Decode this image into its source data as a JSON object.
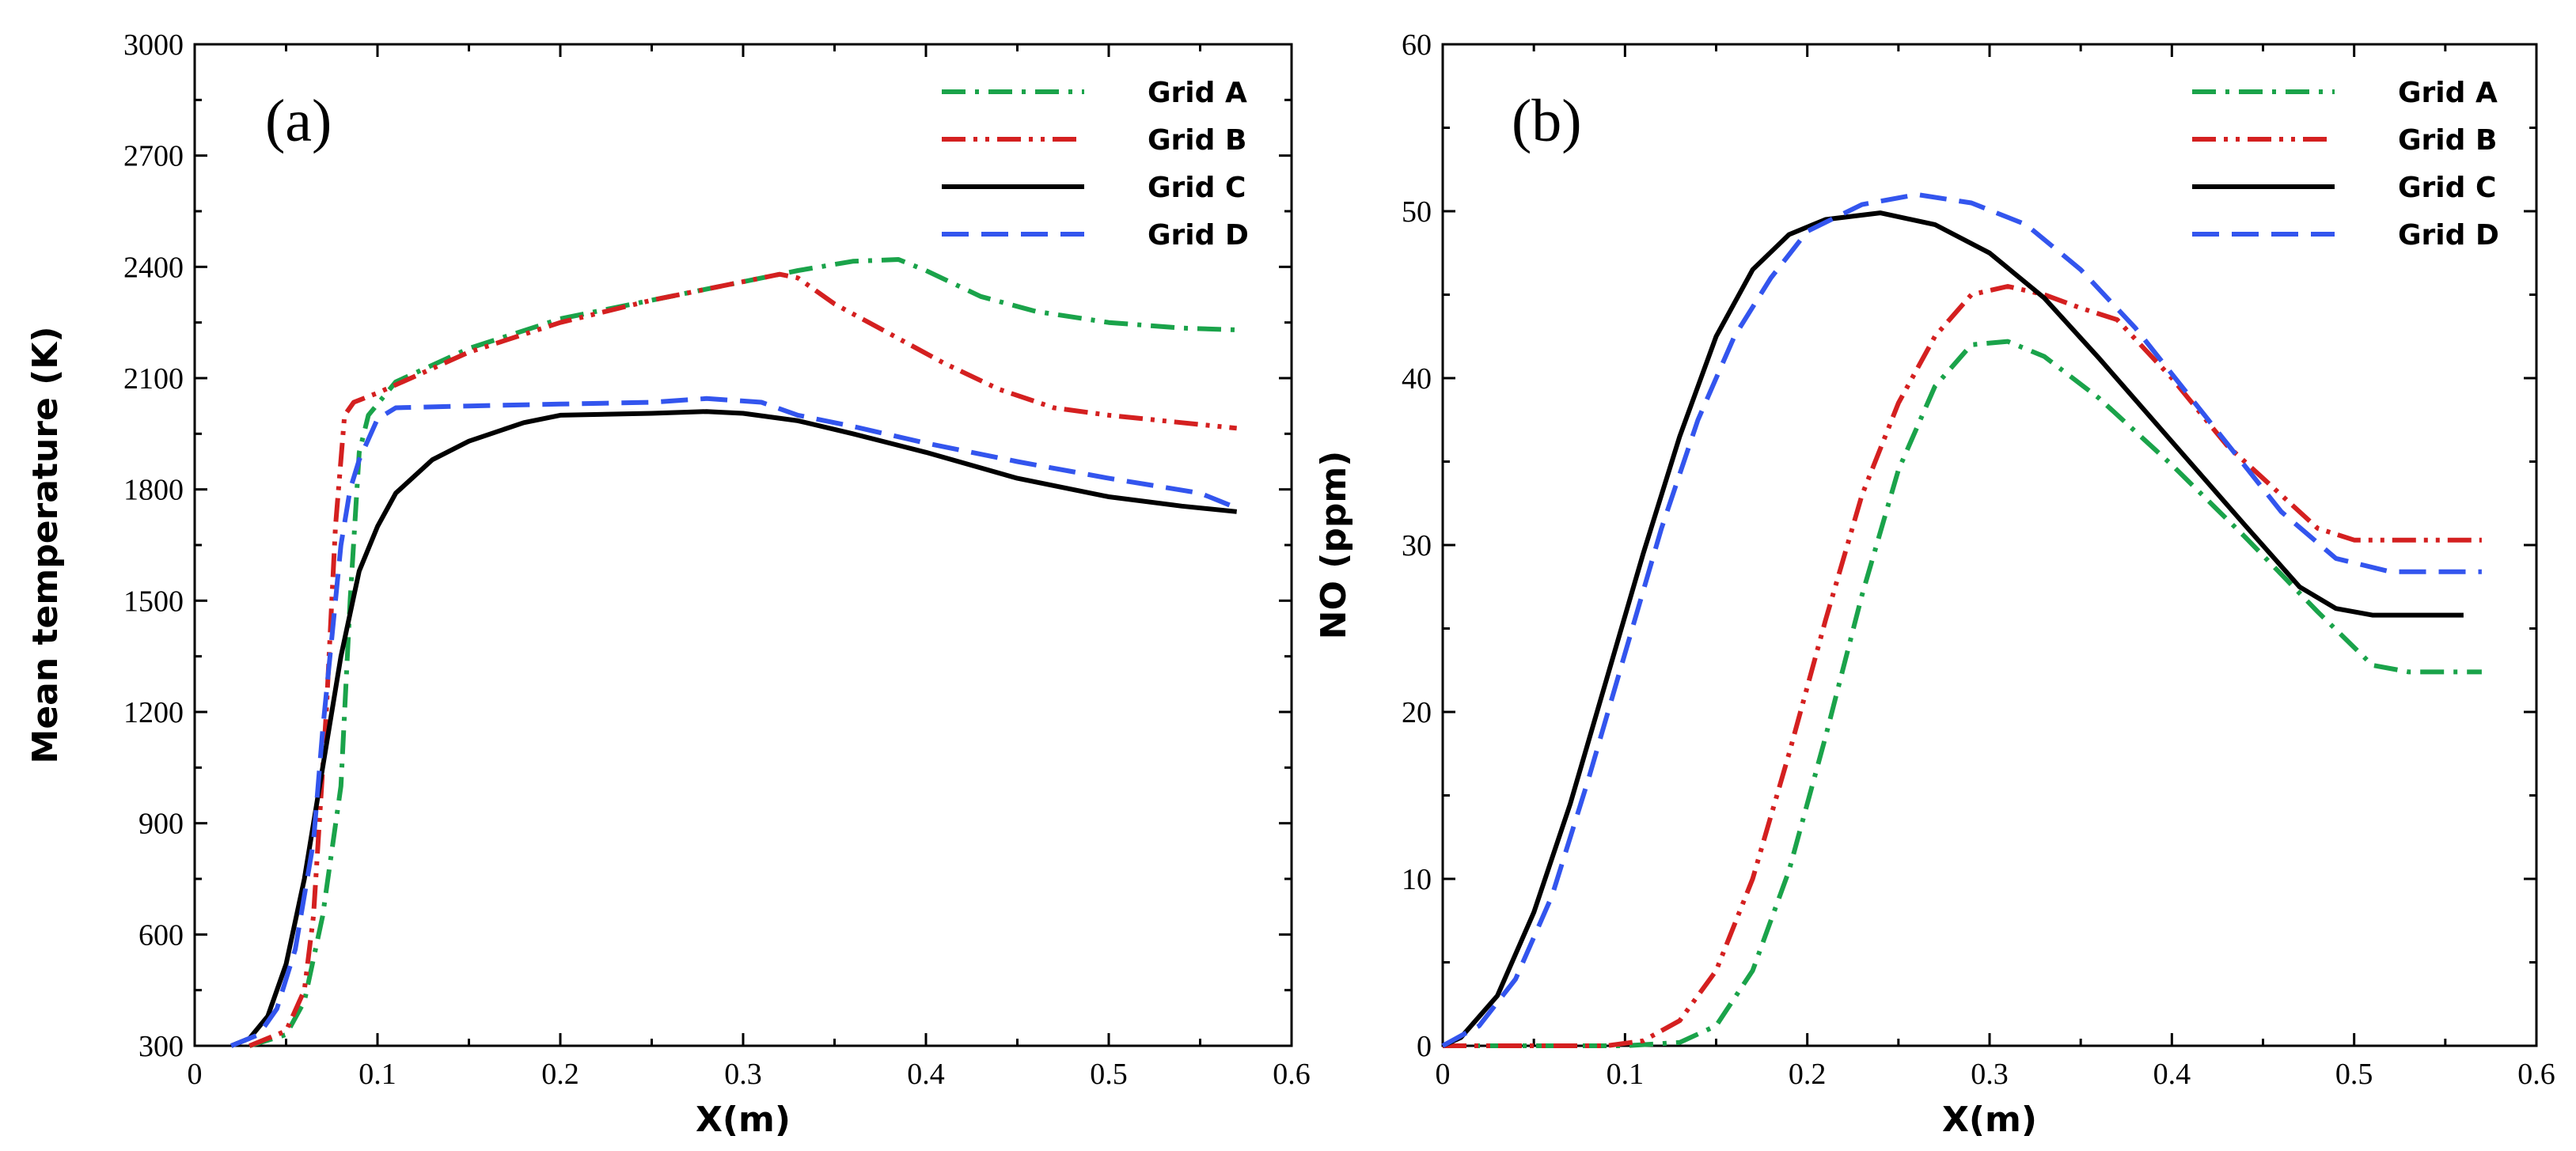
{
  "chart_data": [
    {
      "type": "line",
      "panel_label": "(a)",
      "xlabel": "X(m)",
      "ylabel": "Mean temperature (K)",
      "xlim": [
        0,
        0.6
      ],
      "ylim": [
        300,
        3000
      ],
      "xticks": [
        "0",
        "0.1",
        "0.2",
        "0.3",
        "0.4",
        "0.5",
        "0.6"
      ],
      "xtick_values": [
        0,
        0.1,
        0.2,
        0.3,
        0.4,
        0.5,
        0.6
      ],
      "yticks": [
        "300",
        "600",
        "900",
        "1200",
        "1500",
        "1800",
        "2100",
        "2400",
        "2700",
        "3000"
      ],
      "ytick_values": [
        300,
        600,
        900,
        1200,
        1500,
        1800,
        2100,
        2400,
        2700,
        3000
      ],
      "legend_position": "top-right",
      "series": [
        {
          "name": "Grid A",
          "color": "#1aa34a",
          "dash": "dashdot",
          "points": [
            [
              0.03,
              300
            ],
            [
              0.05,
              330
            ],
            [
              0.06,
              420
            ],
            [
              0.07,
              650
            ],
            [
              0.08,
              1000
            ],
            [
              0.085,
              1500
            ],
            [
              0.09,
              1900
            ],
            [
              0.095,
              2000
            ],
            [
              0.11,
              2090
            ],
            [
              0.15,
              2180
            ],
            [
              0.2,
              2260
            ],
            [
              0.25,
              2310
            ],
            [
              0.3,
              2360
            ],
            [
              0.33,
              2390
            ],
            [
              0.36,
              2415
            ],
            [
              0.385,
              2420
            ],
            [
              0.4,
              2390
            ],
            [
              0.43,
              2320
            ],
            [
              0.46,
              2280
            ],
            [
              0.5,
              2250
            ],
            [
              0.54,
              2235
            ],
            [
              0.57,
              2230
            ]
          ]
        },
        {
          "name": "Grid B",
          "color": "#d42020",
          "dash": "dashdotdot",
          "points": [
            [
              0.03,
              300
            ],
            [
              0.05,
              340
            ],
            [
              0.06,
              450
            ],
            [
              0.065,
              650
            ],
            [
              0.072,
              1200
            ],
            [
              0.077,
              1700
            ],
            [
              0.082,
              2000
            ],
            [
              0.087,
              2035
            ],
            [
              0.1,
              2060
            ],
            [
              0.15,
              2170
            ],
            [
              0.2,
              2250
            ],
            [
              0.25,
              2310
            ],
            [
              0.3,
              2360
            ],
            [
              0.32,
              2380
            ],
            [
              0.33,
              2370
            ],
            [
              0.35,
              2300
            ],
            [
              0.38,
              2220
            ],
            [
              0.41,
              2140
            ],
            [
              0.44,
              2070
            ],
            [
              0.47,
              2020
            ],
            [
              0.5,
              2000
            ],
            [
              0.54,
              1980
            ],
            [
              0.57,
              1965
            ]
          ]
        },
        {
          "name": "Grid C",
          "color": "#000000",
          "dash": "solid",
          "points": [
            [
              0.02,
              300
            ],
            [
              0.03,
              320
            ],
            [
              0.04,
              380
            ],
            [
              0.05,
              520
            ],
            [
              0.06,
              750
            ],
            [
              0.07,
              1050
            ],
            [
              0.08,
              1350
            ],
            [
              0.09,
              1580
            ],
            [
              0.1,
              1700
            ],
            [
              0.11,
              1790
            ],
            [
              0.13,
              1880
            ],
            [
              0.15,
              1930
            ],
            [
              0.18,
              1980
            ],
            [
              0.2,
              2000
            ],
            [
              0.25,
              2005
            ],
            [
              0.28,
              2010
            ],
            [
              0.3,
              2005
            ],
            [
              0.33,
              1985
            ],
            [
              0.36,
              1950
            ],
            [
              0.4,
              1900
            ],
            [
              0.45,
              1830
            ],
            [
              0.5,
              1780
            ],
            [
              0.54,
              1755
            ],
            [
              0.57,
              1740
            ]
          ]
        },
        {
          "name": "Grid D",
          "color": "#3355ee",
          "dash": "dashed",
          "points": [
            [
              0.02,
              300
            ],
            [
              0.035,
              330
            ],
            [
              0.045,
              400
            ],
            [
              0.055,
              560
            ],
            [
              0.065,
              850
            ],
            [
              0.07,
              1150
            ],
            [
              0.075,
              1400
            ],
            [
              0.08,
              1650
            ],
            [
              0.085,
              1800
            ],
            [
              0.09,
              1880
            ],
            [
              0.1,
              1990
            ],
            [
              0.11,
              2020
            ],
            [
              0.15,
              2025
            ],
            [
              0.2,
              2030
            ],
            [
              0.25,
              2035
            ],
            [
              0.28,
              2045
            ],
            [
              0.31,
              2035
            ],
            [
              0.33,
              2000
            ],
            [
              0.36,
              1970
            ],
            [
              0.4,
              1925
            ],
            [
              0.45,
              1875
            ],
            [
              0.5,
              1830
            ],
            [
              0.55,
              1790
            ],
            [
              0.57,
              1750
            ]
          ]
        }
      ]
    },
    {
      "type": "line",
      "panel_label": "(b)",
      "xlabel": "X(m)",
      "ylabel": "NO (ppm)",
      "xlim": [
        0,
        0.6
      ],
      "ylim": [
        0,
        60
      ],
      "xticks": [
        "0",
        "0.1",
        "0.2",
        "0.3",
        "0.4",
        "0.5",
        "0.6"
      ],
      "xtick_values": [
        0,
        0.1,
        0.2,
        0.3,
        0.4,
        0.5,
        0.6
      ],
      "yticks": [
        "0",
        "10",
        "20",
        "30",
        "40",
        "50",
        "60"
      ],
      "ytick_values": [
        0,
        10,
        20,
        30,
        40,
        50,
        60
      ],
      "legend_position": "top-right",
      "series": [
        {
          "name": "Grid A",
          "color": "#1aa34a",
          "dash": "dashdot",
          "points": [
            [
              0,
              0
            ],
            [
              0.1,
              0
            ],
            [
              0.13,
              0.2
            ],
            [
              0.15,
              1.2
            ],
            [
              0.17,
              4.5
            ],
            [
              0.19,
              10.5
            ],
            [
              0.21,
              18.5
            ],
            [
              0.23,
              27
            ],
            [
              0.25,
              34.5
            ],
            [
              0.27,
              39.5
            ],
            [
              0.29,
              42
            ],
            [
              0.31,
              42.2
            ],
            [
              0.33,
              41.3
            ],
            [
              0.36,
              38.8
            ],
            [
              0.4,
              34.8
            ],
            [
              0.44,
              30.5
            ],
            [
              0.48,
              26
            ],
            [
              0.51,
              22.8
            ],
            [
              0.53,
              22.4
            ],
            [
              0.57,
              22.4
            ]
          ]
        },
        {
          "name": "Grid B",
          "color": "#d42020",
          "dash": "dashdotdot",
          "points": [
            [
              0,
              0
            ],
            [
              0.09,
              0
            ],
            [
              0.11,
              0.3
            ],
            [
              0.13,
              1.5
            ],
            [
              0.15,
              4.5
            ],
            [
              0.17,
              10
            ],
            [
              0.19,
              17.5
            ],
            [
              0.21,
              25.5
            ],
            [
              0.23,
              33
            ],
            [
              0.25,
              38.5
            ],
            [
              0.27,
              42.5
            ],
            [
              0.29,
              45
            ],
            [
              0.31,
              45.5
            ],
            [
              0.33,
              45
            ],
            [
              0.35,
              44.2
            ],
            [
              0.37,
              43.5
            ],
            [
              0.4,
              40
            ],
            [
              0.43,
              36
            ],
            [
              0.46,
              33
            ],
            [
              0.48,
              31
            ],
            [
              0.5,
              30.3
            ],
            [
              0.53,
              30.3
            ],
            [
              0.57,
              30.3
            ]
          ]
        },
        {
          "name": "Grid C",
          "color": "#000000",
          "dash": "solid",
          "points": [
            [
              0,
              0
            ],
            [
              0.01,
              0.5
            ],
            [
              0.03,
              3
            ],
            [
              0.05,
              8
            ],
            [
              0.07,
              14.5
            ],
            [
              0.09,
              22
            ],
            [
              0.11,
              29.5
            ],
            [
              0.13,
              36.5
            ],
            [
              0.15,
              42.5
            ],
            [
              0.17,
              46.5
            ],
            [
              0.19,
              48.6
            ],
            [
              0.21,
              49.5
            ],
            [
              0.24,
              49.9
            ],
            [
              0.27,
              49.2
            ],
            [
              0.3,
              47.5
            ],
            [
              0.33,
              44.8
            ],
            [
              0.36,
              41.2
            ],
            [
              0.4,
              36.2
            ],
            [
              0.44,
              31.2
            ],
            [
              0.47,
              27.5
            ],
            [
              0.49,
              26.2
            ],
            [
              0.51,
              25.8
            ],
            [
              0.56,
              25.8
            ]
          ]
        },
        {
          "name": "Grid D",
          "color": "#3355ee",
          "dash": "dashed",
          "points": [
            [
              0,
              0
            ],
            [
              0.02,
              1.2
            ],
            [
              0.04,
              4
            ],
            [
              0.06,
              9
            ],
            [
              0.08,
              16
            ],
            [
              0.1,
              23.5
            ],
            [
              0.12,
              31
            ],
            [
              0.14,
              37.5
            ],
            [
              0.16,
              42.5
            ],
            [
              0.18,
              46
            ],
            [
              0.2,
              48.8
            ],
            [
              0.23,
              50.4
            ],
            [
              0.26,
              51
            ],
            [
              0.29,
              50.5
            ],
            [
              0.32,
              49.2
            ],
            [
              0.35,
              46.5
            ],
            [
              0.38,
              43
            ],
            [
              0.42,
              37.5
            ],
            [
              0.46,
              32
            ],
            [
              0.49,
              29.2
            ],
            [
              0.52,
              28.4
            ],
            [
              0.57,
              28.4
            ]
          ]
        }
      ]
    }
  ]
}
